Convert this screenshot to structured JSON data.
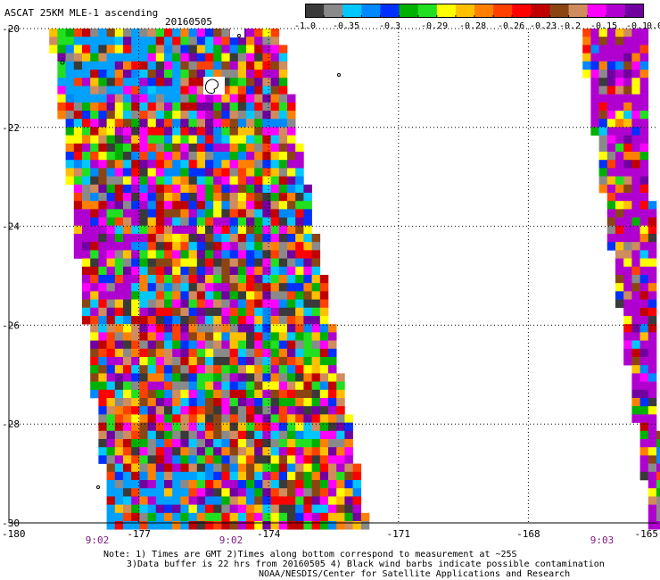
{
  "header": {
    "title": "ASCAT 25KM MLE-1 ascending",
    "date": "20160505"
  },
  "colorbar": {
    "colors": [
      "#3a3a3a",
      "#8a8a8a",
      "#00c8ff",
      "#0088ff",
      "#0030ff",
      "#00b000",
      "#20e020",
      "#ffff00",
      "#ffc000",
      "#ff8000",
      "#ff4000",
      "#ff0000",
      "#c00000",
      "#8b4513",
      "#d08c5c",
      "#ff00ff",
      "#b000d0",
      "#7000a0"
    ],
    "labels": [
      "-1.0",
      "-0.35",
      "-0.3",
      "-0.29",
      "-0.28",
      "-0.26",
      "-0.23",
      "-0.2",
      "-0.15",
      "-0.1",
      "0.0"
    ]
  },
  "axes": {
    "lat_labels": [
      "-20",
      "-22",
      "-24",
      "-26",
      "-28",
      "-30"
    ],
    "lon_labels": [
      "-180",
      "-177",
      "-174",
      "-171",
      "-168",
      "-165"
    ],
    "time_labels": [
      "9:02",
      "9:02",
      "9:03"
    ]
  },
  "notes": {
    "line1": "Note: 1) Times are GMT 2)Times along bottom correspond to measurement at ~25S",
    "line2": "3)Data buffer is 22 hrs from 20160505 4) Black wind barbs indicate possible contamination",
    "line3": "NOAA/NESDIS/Center for Satellite Applications and Research"
  }
}
